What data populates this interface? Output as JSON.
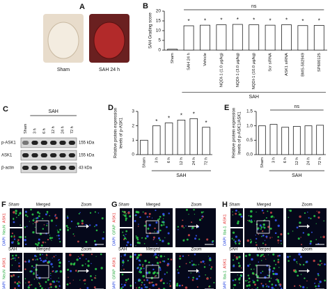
{
  "panel_a": {
    "letter": "A",
    "labels": [
      "Sham",
      "SAH 24 h"
    ]
  },
  "panel_c": {
    "letter": "C",
    "group": "SAH",
    "lanes": [
      "Sham",
      "3 h",
      "6 h",
      "12 h",
      "24 h",
      "72 h"
    ],
    "rows": [
      {
        "name": "p-ASK1",
        "size": "155 kDa"
      },
      {
        "name": "ASK1",
        "size": "155 kDa"
      },
      {
        "name": "β-actin",
        "size": "43 kDa"
      }
    ]
  },
  "chart_data": [
    {
      "type": "bar",
      "panel": "B",
      "ylabel": [
        "SAH Grading score"
      ],
      "categories": [
        "Sham",
        "SAH 24 h",
        "Vehicle",
        "NQDI-1 (1.0 μg/kg)",
        "NQDI-1 (3.0 μg/kg)",
        "NQDI-1 (10.0 μg/kg)",
        "Scr siRNA",
        "ASK1 siRNA",
        "BMS-582949",
        "SP600125"
      ],
      "values": [
        0.5,
        12.5,
        12.8,
        13,
        13.2,
        13,
        12.8,
        13,
        12.6,
        12.7
      ],
      "sig_labels": [
        null,
        "*",
        "*",
        "*",
        "*",
        "*",
        "*",
        "*",
        "*",
        "*"
      ],
      "bracket_label": "ns",
      "group_label": "SAH",
      "ylim": [
        0,
        20
      ],
      "yticks": [
        0,
        5,
        10,
        15,
        20
      ]
    },
    {
      "type": "bar",
      "panel": "D",
      "ylabel": [
        "Relative protein expression",
        "levels of p-ASK1"
      ],
      "categories": [
        "Sham",
        "3 h",
        "6 h",
        "12 h",
        "24 h",
        "72 h"
      ],
      "values": [
        1.0,
        2.0,
        2.2,
        2.4,
        2.5,
        1.9
      ],
      "sig_labels": [
        null,
        "*",
        "*",
        "*",
        "*",
        "*"
      ],
      "group_label": "SAH",
      "ylim": [
        0,
        3
      ],
      "yticks": [
        0,
        1,
        2,
        3
      ]
    },
    {
      "type": "bar",
      "panel": "E",
      "ylabel": [
        "Relative protein expression",
        "levels of p-ASK1/ASK1"
      ],
      "categories": [
        "Sham",
        "3 h",
        "6 h",
        "12 h",
        "24 h",
        "72 h"
      ],
      "values": [
        1.0,
        1.05,
        0.95,
        0.98,
        1.0,
        1.02
      ],
      "bracket_label": "ns",
      "group_label": "SAH",
      "ylim": [
        0,
        1.5
      ],
      "yticks": [
        {
          "value": 0,
          "label": "0.0"
        },
        {
          "value": 0.5,
          "label": "0.5"
        },
        {
          "value": 1,
          "label": "1.0"
        },
        {
          "value": 1.5,
          "label": "1.5"
        }
      ]
    }
  ],
  "micrographs": [
    {
      "letter": "F",
      "channels": [
        "ASK1",
        "NeuN",
        "DAPI"
      ],
      "rows": [
        "Sham",
        "SAH"
      ],
      "columns": [
        "Merged",
        "Zoom"
      ]
    },
    {
      "letter": "G",
      "channels": [
        "ASK1",
        "GFAP",
        "DAPI"
      ],
      "rows": [
        "Sham",
        "SAH"
      ],
      "columns": [
        "Merged",
        "Zoom"
      ]
    },
    {
      "letter": "H",
      "channels": [
        "ASK1",
        "Iba-1",
        "DAPI"
      ],
      "rows": [
        "Sham",
        "SAH"
      ],
      "columns": [
        "Merged",
        "Zoom"
      ]
    }
  ]
}
